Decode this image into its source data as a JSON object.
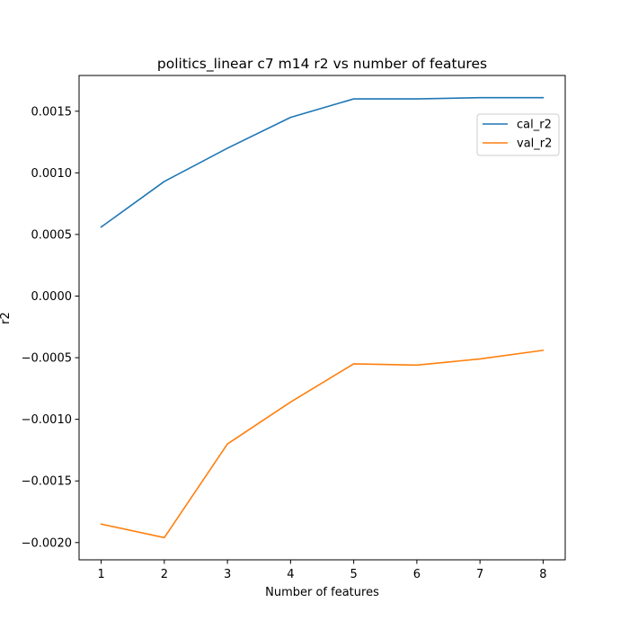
{
  "chart_data": {
    "type": "line",
    "title": "politics_linear c7 m14 r2 vs number of features",
    "xlabel": "Number of features",
    "ylabel": "r2",
    "x": [
      1,
      2,
      3,
      4,
      5,
      6,
      7,
      8
    ],
    "xticks": [
      "1",
      "2",
      "3",
      "4",
      "5",
      "6",
      "7",
      "8"
    ],
    "yticks": [
      {
        "value": 0.0015,
        "label": "0.0015"
      },
      {
        "value": 0.001,
        "label": "0.0010"
      },
      {
        "value": 0.0005,
        "label": "0.0005"
      },
      {
        "value": 0.0,
        "label": "0.0000"
      },
      {
        "value": -0.0005,
        "label": "−0.0005"
      },
      {
        "value": -0.001,
        "label": "−0.0010"
      },
      {
        "value": -0.0015,
        "label": "−0.0015"
      },
      {
        "value": -0.002,
        "label": "−0.0020"
      }
    ],
    "xlim": [
      0.65,
      8.35
    ],
    "ylim": [
      -0.00214,
      0.00179
    ],
    "grid": false,
    "legend_position": "upper-right",
    "series": [
      {
        "name": "cal_r2",
        "color": "#1f77b4",
        "values": [
          0.00056,
          0.00093,
          0.0012,
          0.00145,
          0.0016,
          0.0016,
          0.00161,
          0.00161
        ]
      },
      {
        "name": "val_r2",
        "color": "#ff7f0e",
        "values": [
          -0.00185,
          -0.00196,
          -0.0012,
          -0.00086,
          -0.00055,
          -0.00056,
          -0.00051,
          -0.00044
        ]
      }
    ]
  }
}
